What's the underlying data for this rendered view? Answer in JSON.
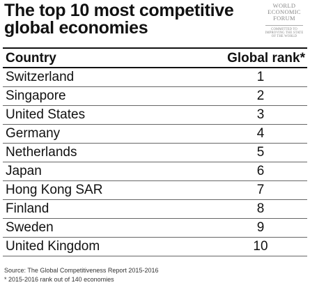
{
  "title": {
    "line1": "The top 10 most competitive",
    "line2": "global economies"
  },
  "logo": {
    "line1": "WORLD",
    "line2": "ECONOMIC",
    "line3": "FORUM",
    "tag1": "COMMITTED TO",
    "tag2": "IMPROVING THE STATE",
    "tag3": "OF THE WORLD"
  },
  "chart_data": {
    "type": "table",
    "columns": [
      "Country",
      "Global rank*"
    ],
    "rows": [
      {
        "country": "Switzerland",
        "rank": "1"
      },
      {
        "country": "Singapore",
        "rank": "2"
      },
      {
        "country": "United States",
        "rank": "3"
      },
      {
        "country": "Germany",
        "rank": "4"
      },
      {
        "country": "Netherlands",
        "rank": "5"
      },
      {
        "country": "Japan",
        "rank": "6"
      },
      {
        "country": "Hong Kong SAR",
        "rank": "7"
      },
      {
        "country": "Finland",
        "rank": "8"
      },
      {
        "country": "Sweden",
        "rank": "9"
      },
      {
        "country": "United Kingdom",
        "rank": "10"
      }
    ]
  },
  "notes": {
    "source": "Source: The Global Competitiveness Report 2015-2016",
    "footnote": "* 2015-2016 rank out of 140 economies"
  }
}
